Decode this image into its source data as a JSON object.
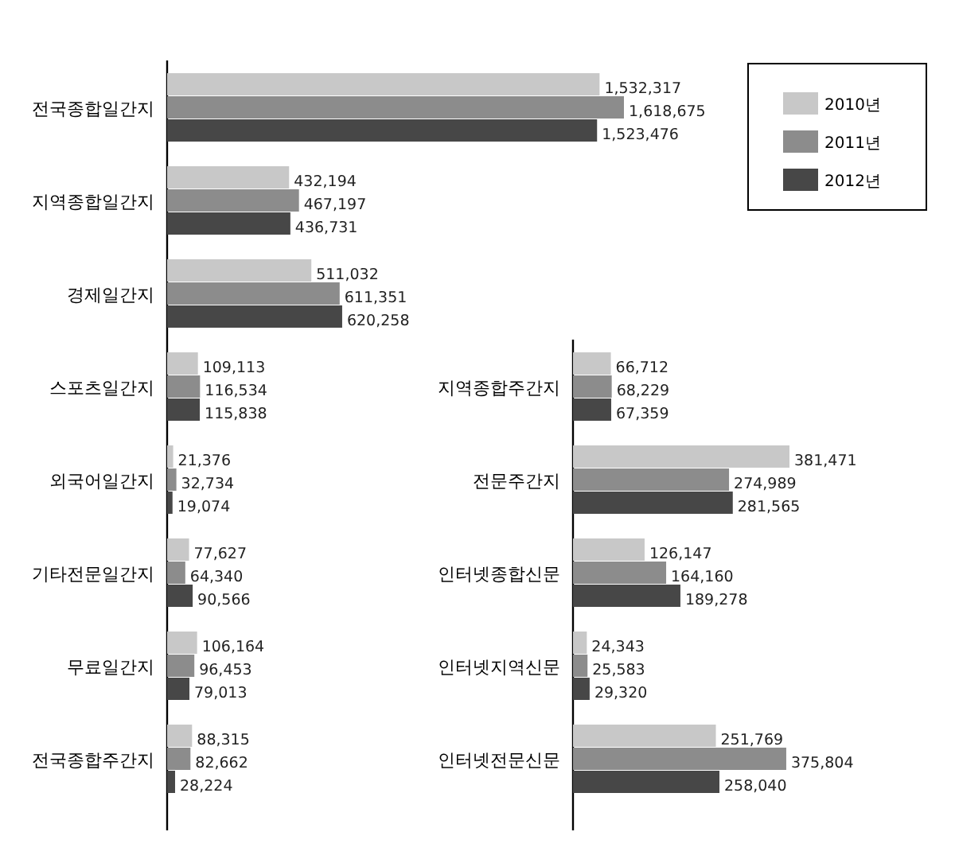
{
  "chart_data": [
    {
      "type": "bar",
      "orientation": "horizontal",
      "legend": "top right",
      "categories": [
        "전국종합일간지",
        "지역종합일간지",
        "경제일간지",
        "스포츠일간지",
        "외국어일간지",
        "기타전문일간지",
        "무료일간지",
        "전국종합주간지"
      ],
      "series": [
        {
          "name": "2010년",
          "color": "#c8c8c8",
          "values": [
            1532317,
            432194,
            511032,
            109113,
            21376,
            77627,
            106164,
            88315
          ],
          "value_labels": [
            "1,532,317",
            "432,194",
            "511,032",
            "109,113",
            "21,376",
            "77,627",
            "106,164",
            "88,315"
          ]
        },
        {
          "name": "2011년",
          "color": "#8c8c8c",
          "values": [
            1618675,
            467197,
            611351,
            116534,
            32734,
            64340,
            96453,
            82662
          ],
          "value_labels": [
            "1,618,675",
            "467,197",
            "611,351",
            "116,534",
            "32,734",
            "64,340",
            "96,453",
            "82,662"
          ]
        },
        {
          "name": "2012년",
          "color": "#474747",
          "values": [
            1523476,
            436731,
            620258,
            115838,
            19074,
            90566,
            79013,
            28224
          ],
          "value_labels": [
            "1,523,476",
            "436,731",
            "620,258",
            "115,838",
            "19,074",
            "90,566",
            "79,013",
            "28,224"
          ]
        }
      ]
    },
    {
      "type": "bar",
      "orientation": "horizontal",
      "categories": [
        "지역종합주간지",
        "전문주간지",
        "인터넷종합신문",
        "인터넷지역신문",
        "인터넷전문신문"
      ],
      "series": [
        {
          "color": "#c8c8c8",
          "values": [
            66712,
            381471,
            126147,
            24343,
            251769
          ],
          "value_labels": [
            "66,712",
            "381,471",
            "126,147",
            "24,343",
            "251,769"
          ]
        },
        {
          "color": "#8c8c8c",
          "values": [
            68229,
            274989,
            164160,
            25583,
            375804
          ],
          "value_labels": [
            "68,229",
            "274,989",
            "164,160",
            "25,583",
            "375,804"
          ]
        },
        {
          "color": "#474747",
          "values": [
            67359,
            281565,
            189278,
            29320,
            258040
          ],
          "value_labels": [
            "67,359",
            "281,565",
            "189,278",
            "29,320",
            "258,040"
          ]
        }
      ]
    }
  ]
}
